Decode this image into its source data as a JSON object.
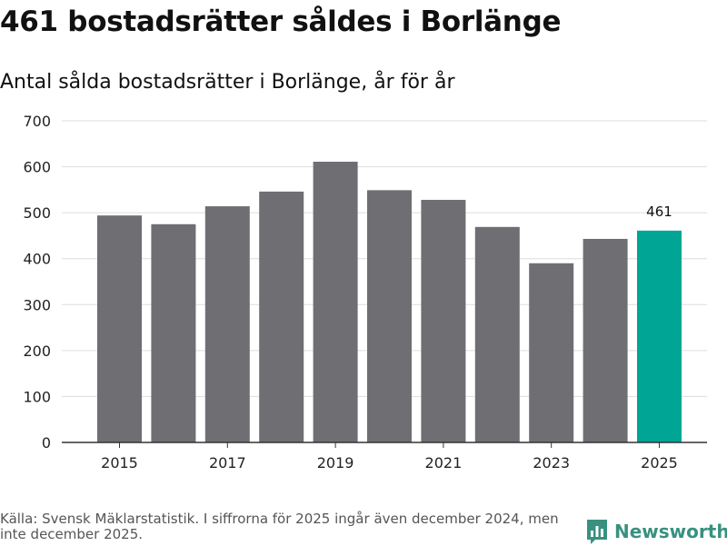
{
  "header": {
    "title": "461 bostadsrätter såldes i Borlänge",
    "subtitle": "Antal sålda bostadsrätter i Borlänge, år för år"
  },
  "chart_data": {
    "type": "bar",
    "categories": [
      "2015",
      "2016",
      "2017",
      "2018",
      "2019",
      "2020",
      "2021",
      "2022",
      "2023",
      "2024",
      "2025"
    ],
    "values": [
      494,
      475,
      514,
      546,
      611,
      549,
      528,
      469,
      390,
      443,
      461
    ],
    "x_tick_labels": [
      "2015",
      "2017",
      "2019",
      "2021",
      "2023",
      "2025"
    ],
    "y_ticks": [
      0,
      100,
      200,
      300,
      400,
      500,
      600,
      700
    ],
    "ylim": [
      0,
      700
    ],
    "highlight_category": "2025",
    "data_labels": [
      {
        "category": "2025",
        "text": "461"
      }
    ],
    "grid": true,
    "xlabel": "",
    "ylabel": "",
    "colors": {
      "bar": "#6e6e73",
      "highlight": "#00a596",
      "grid": "#dddddd",
      "axis": "#333333",
      "tick_text": "#222222"
    }
  },
  "footer": {
    "source": "Källa: Svensk Mäklarstatistik. I siffrorna för 2025 ingår även december 2024, men inte december 2025."
  },
  "logo": {
    "text": "Newsworthy",
    "color": "#38917f"
  }
}
